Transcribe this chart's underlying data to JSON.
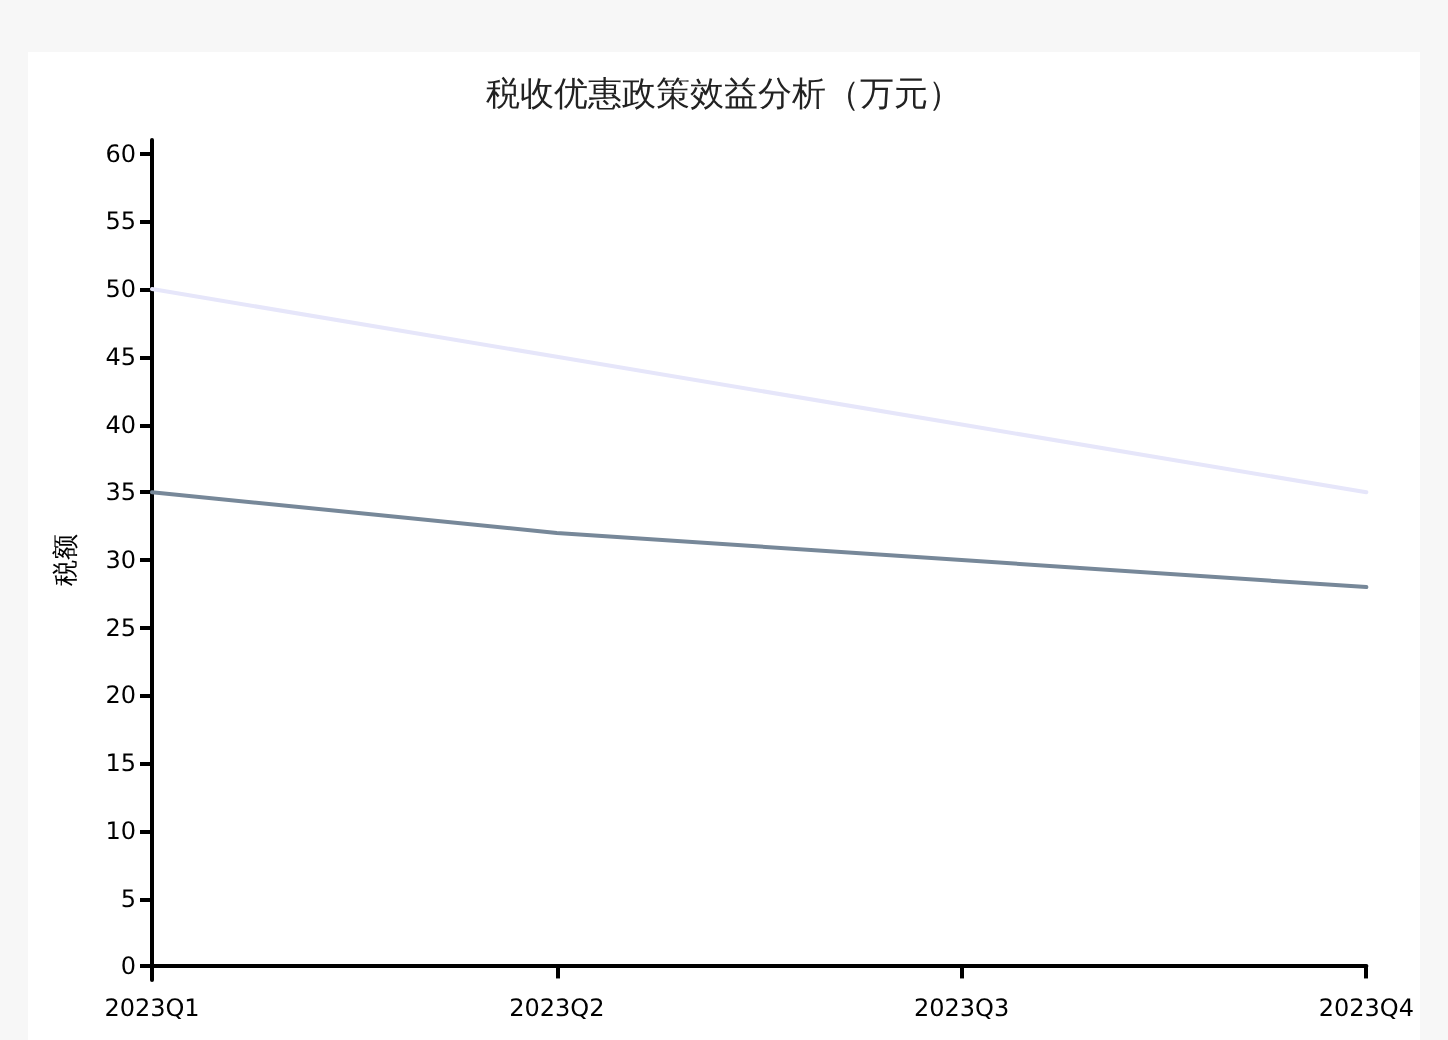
{
  "chart_data": {
    "type": "line",
    "title": "税收优惠政策效益分析（万元）",
    "ylabel": "税额",
    "categories": [
      "2023Q1",
      "2023Q2",
      "2023Q3",
      "2023Q4"
    ],
    "series": [
      {
        "color": "#e6e6fa",
        "values": [
          50,
          45,
          40,
          35
        ]
      },
      {
        "color": "#778899",
        "values": [
          35,
          32,
          30,
          28
        ]
      }
    ],
    "ylim": [
      -1,
      61
    ],
    "yticks": [
      0,
      5,
      10,
      15,
      20,
      25,
      30,
      35,
      40,
      45,
      50,
      55,
      60
    ],
    "grid": false,
    "marker": "none",
    "line_style": "solid"
  }
}
